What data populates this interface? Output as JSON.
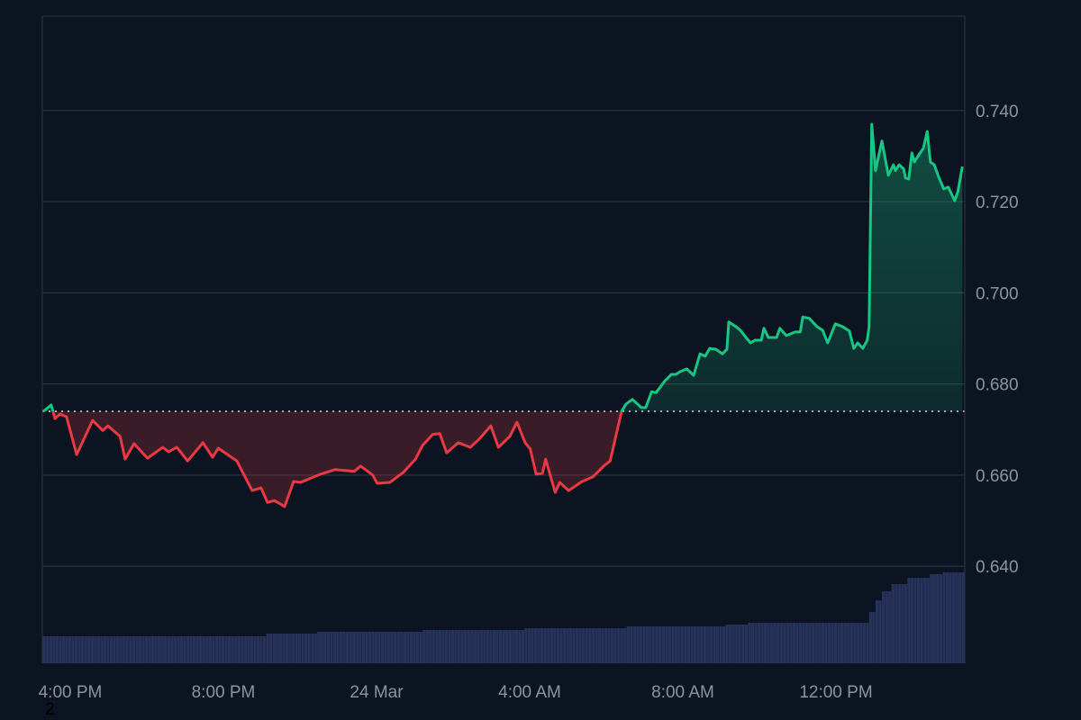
{
  "chart_data": {
    "type": "area",
    "subtype": "baseline",
    "title": "",
    "xlabel": "",
    "ylabel": "",
    "baseline": 0.674,
    "ylim": [
      0.6187,
      0.7607
    ],
    "x_ticks": [
      "4:00 PM",
      "8:00 PM",
      "24 Mar",
      "4:00 AM",
      "8:00 AM",
      "12:00 PM"
    ],
    "y_ticks": [
      "0.640",
      "0.660",
      "0.680",
      "0.700",
      "0.720",
      "0.740"
    ],
    "y_axis_position": "right",
    "grid": "horizontal",
    "colors": {
      "background": "#0d1421",
      "above": "#16c784",
      "below": "#ea3943",
      "volume": "#27325a",
      "grid": "#2a3140",
      "text": "#8b93a3"
    },
    "series": [
      {
        "type": "line",
        "x": [
          "15:18",
          "15:30",
          "15:36",
          "15:44",
          "15:54",
          "16:10",
          "16:35",
          "16:51",
          "16:59",
          "17:18",
          "17:26",
          "17:40",
          "18:01",
          "18:25",
          "18:34",
          "18:47",
          "19:04",
          "19:28",
          "19:43",
          "19:52",
          "20:21",
          "20:45",
          "20:59",
          "21:09",
          "21:20",
          "21:36",
          "21:50",
          "22:01",
          "22:32",
          "22:55",
          "23:25",
          "23:35",
          "23:54",
          "00:01",
          "00:21",
          "00:42",
          "01:01",
          "01:12",
          "01:28",
          "01:39",
          "01:50",
          "02:08",
          "02:27",
          "02:41",
          "02:59",
          "03:11",
          "03:29",
          "03:40",
          "03:53",
          "04:01",
          "04:10",
          "04:20",
          "04:25",
          "04:40",
          "04:47",
          "05:01",
          "05:22",
          "05:39",
          "05:57",
          "06:06",
          "06:24",
          "06:31",
          "06:41",
          "06:55",
          "07:02",
          "07:11",
          "07:18",
          "07:32",
          "07:42",
          "07:49",
          "07:56",
          "08:06",
          "08:17",
          "08:27",
          "08:35",
          "08:42",
          "08:52",
          "09:02",
          "09:09",
          "09:12",
          "09:23",
          "09:30",
          "09:39",
          "09:46",
          "09:53",
          "10:03",
          "10:07",
          "10:14",
          "10:27",
          "10:32",
          "10:42",
          "10:56",
          "11:04",
          "11:08",
          "11:18",
          "11:30",
          "11:39",
          "11:47",
          "11:59",
          "12:10",
          "12:21",
          "12:28",
          "12:34",
          "12:42",
          "12:49",
          "12:52",
          "12:56",
          "13:02",
          "13:12",
          "13:22",
          "13:30",
          "13:33",
          "13:39",
          "13:46",
          "13:49",
          "13:54",
          "13:59",
          "14:03",
          "14:10",
          "14:17",
          "14:23",
          "14:28",
          "14:34",
          "14:41",
          "14:49",
          "14:56",
          "15:06",
          "15:11",
          "15:18"
        ],
        "y": [
          0.674,
          0.6754,
          0.6724,
          0.6734,
          0.6728,
          0.6645,
          0.672,
          0.6698,
          0.6708,
          0.6685,
          0.6635,
          0.6669,
          0.6637,
          0.6661,
          0.6651,
          0.6661,
          0.6631,
          0.6671,
          0.6639,
          0.6659,
          0.6631,
          0.6566,
          0.6572,
          0.654,
          0.6544,
          0.6531,
          0.6586,
          0.6584,
          0.6602,
          0.6612,
          0.6608,
          0.662,
          0.66,
          0.6582,
          0.6584,
          0.6606,
          0.6635,
          0.6665,
          0.6689,
          0.6691,
          0.6649,
          0.6671,
          0.6661,
          0.6679,
          0.6708,
          0.6661,
          0.6685,
          0.6716,
          0.6671,
          0.6657,
          0.6602,
          0.6604,
          0.6635,
          0.6562,
          0.6584,
          0.6566,
          0.6586,
          0.6596,
          0.6621,
          0.6631,
          0.674,
          0.6756,
          0.6766,
          0.6748,
          0.6748,
          0.6783,
          0.6781,
          0.6807,
          0.6821,
          0.6821,
          0.6827,
          0.6833,
          0.6819,
          0.6866,
          0.6861,
          0.6878,
          0.6876,
          0.6866,
          0.6876,
          0.6936,
          0.6926,
          0.6918,
          0.6902,
          0.689,
          0.6896,
          0.6896,
          0.6922,
          0.6902,
          0.6902,
          0.6922,
          0.6906,
          0.6914,
          0.6914,
          0.6947,
          0.6944,
          0.6926,
          0.6918,
          0.689,
          0.6932,
          0.6926,
          0.6916,
          0.6878,
          0.689,
          0.6878,
          0.6896,
          0.6926,
          0.737,
          0.7268,
          0.7333,
          0.7258,
          0.7281,
          0.7268,
          0.7281,
          0.7272,
          0.7252,
          0.725,
          0.7307,
          0.7287,
          0.7303,
          0.7317,
          0.7354,
          0.7287,
          0.7281,
          0.7254,
          0.7228,
          0.7232,
          0.7202,
          0.7222,
          0.7277
        ]
      },
      {
        "type": "histogram",
        "steps_time": [
          "15:17",
          "21:04",
          "22:24",
          "01:09",
          "03:49",
          "06:32",
          "09:06",
          "09:41",
          "12:52",
          "12:59",
          "13:10",
          "13:25",
          "13:49",
          "14:24",
          "14:45"
        ],
        "steps_value": [
          30,
          33,
          35,
          37,
          39,
          41,
          43,
          45,
          57,
          70,
          80,
          88,
          95,
          99,
          101
        ]
      }
    ]
  },
  "footer_text": "2"
}
